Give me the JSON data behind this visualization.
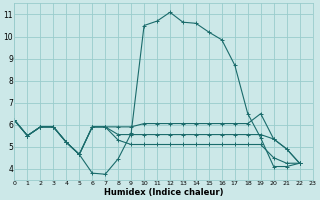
{
  "title": "",
  "xlabel": "Humidex (Indice chaleur)",
  "ylabel": "",
  "background_color": "#cce8e8",
  "grid_color": "#99cccc",
  "line_color": "#1a6b6b",
  "xlim": [
    0,
    23
  ],
  "ylim": [
    3.5,
    11.5
  ],
  "xticks": [
    0,
    1,
    2,
    3,
    4,
    5,
    6,
    7,
    8,
    9,
    10,
    11,
    12,
    13,
    14,
    15,
    16,
    17,
    18,
    19,
    20,
    21,
    22,
    23
  ],
  "yticks": [
    4,
    5,
    6,
    7,
    8,
    9,
    10,
    11
  ],
  "series": [
    {
      "x": [
        0,
        1,
        2,
        3,
        4,
        5,
        6,
        7,
        8,
        9,
        10,
        11,
        12,
        13,
        14,
        15,
        16,
        17,
        18,
        19,
        20,
        21,
        22
      ],
      "y": [
        6.2,
        5.5,
        5.9,
        5.9,
        5.2,
        4.65,
        3.8,
        3.75,
        4.45,
        5.6,
        10.5,
        10.7,
        11.1,
        10.65,
        10.6,
        10.2,
        9.85,
        8.7,
        6.5,
        5.4,
        4.1,
        4.1,
        4.25
      ]
    },
    {
      "x": [
        0,
        1,
        2,
        3,
        4,
        5,
        6,
        7,
        8,
        9,
        10,
        11,
        12,
        13,
        14,
        15,
        16,
        17,
        18,
        19,
        20,
        21,
        22
      ],
      "y": [
        6.2,
        5.5,
        5.9,
        5.9,
        5.2,
        4.65,
        5.9,
        5.9,
        5.9,
        5.9,
        6.05,
        6.05,
        6.05,
        6.05,
        6.05,
        6.05,
        6.05,
        6.05,
        6.05,
        6.5,
        5.35,
        4.9,
        4.25
      ]
    },
    {
      "x": [
        0,
        1,
        2,
        3,
        4,
        5,
        6,
        7,
        8,
        9,
        10,
        11,
        12,
        13,
        14,
        15,
        16,
        17,
        18,
        19,
        20,
        21,
        22
      ],
      "y": [
        6.2,
        5.5,
        5.9,
        5.9,
        5.2,
        4.65,
        5.9,
        5.9,
        5.55,
        5.55,
        5.55,
        5.55,
        5.55,
        5.55,
        5.55,
        5.55,
        5.55,
        5.55,
        5.55,
        5.55,
        5.35,
        4.9,
        4.25
      ]
    },
    {
      "x": [
        0,
        1,
        2,
        3,
        4,
        5,
        6,
        7,
        8,
        9,
        10,
        11,
        12,
        13,
        14,
        15,
        16,
        17,
        18,
        19,
        20,
        21,
        22
      ],
      "y": [
        6.2,
        5.5,
        5.9,
        5.9,
        5.2,
        4.65,
        5.9,
        5.9,
        5.3,
        5.1,
        5.1,
        5.1,
        5.1,
        5.1,
        5.1,
        5.1,
        5.1,
        5.1,
        5.1,
        5.1,
        4.5,
        4.25,
        4.25
      ]
    }
  ],
  "marker": "+",
  "markersize": 3,
  "linewidth": 0.8,
  "xlabel_fontsize": 6,
  "xtick_fontsize": 4.5,
  "ytick_fontsize": 5.5
}
